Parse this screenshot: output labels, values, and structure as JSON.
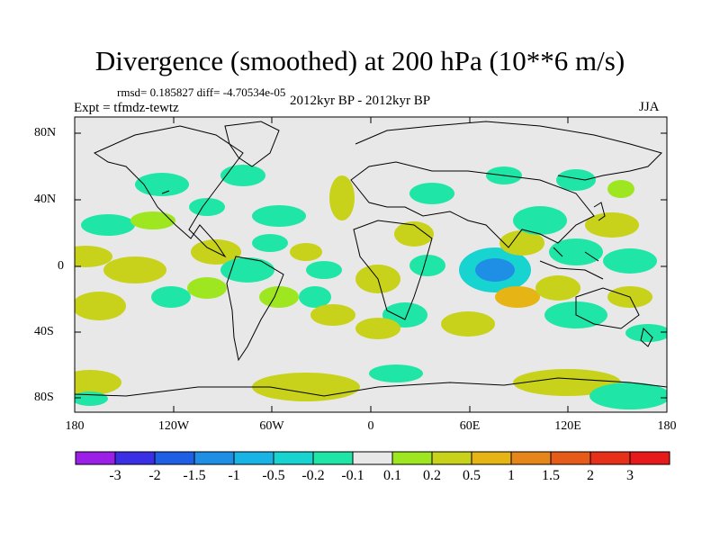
{
  "title": "Divergence (smoothed) at 200 hPa (10**6 m/s)",
  "stats": "rmsd= 0.185827 diff= -4.70534e-05",
  "experiment": "Expt = tfmdz-tewtz",
  "period": "2012kyr BP - 2012kyr BP",
  "season": "JJA",
  "lat_ticks": [
    "80N",
    "40N",
    "0",
    "40S",
    "80S"
  ],
  "lon_ticks": [
    "180",
    "120W",
    "60W",
    "0",
    "60E",
    "120E",
    "180"
  ],
  "colorbar": {
    "labels": [
      "-3",
      "-2",
      "-1.5",
      "-1",
      "-0.5",
      "-0.2",
      "-0.1",
      "0.1",
      "0.2",
      "0.5",
      "1",
      "1.5",
      "2",
      "3"
    ],
    "colors": [
      "#9b1fe6",
      "#3b2fe6",
      "#1f5fe6",
      "#1f8fe6",
      "#18b4e6",
      "#18d4d0",
      "#1fe6a6",
      "#e8e8e8",
      "#9ee61f",
      "#c8d21a",
      "#e6b414",
      "#e6861a",
      "#e65a1a",
      "#e6301a",
      "#e61a1a"
    ]
  },
  "colors": {
    "background": "#e8e8e8",
    "coast": "#000000"
  }
}
